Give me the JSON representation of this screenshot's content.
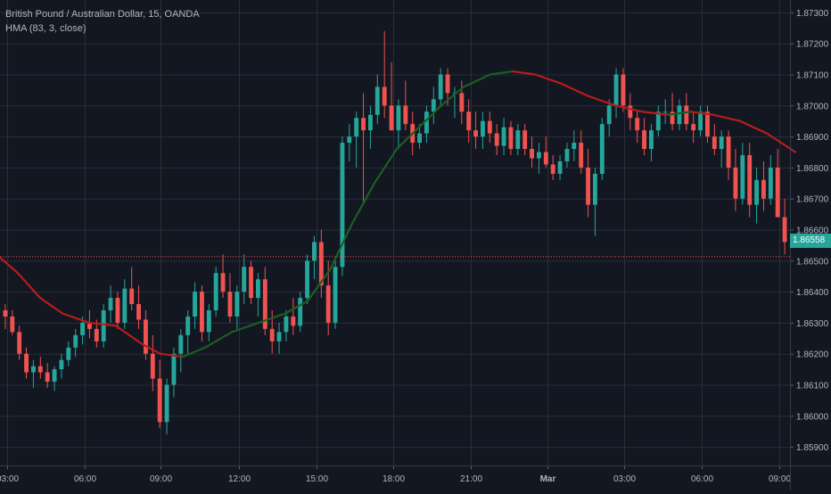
{
  "legend": {
    "symbol": "British Pound / Australian Dollar, 15, OANDA",
    "indicator": "HMA (83, 3, close)"
  },
  "last_price": "1.86558",
  "colors": {
    "background": "#131722",
    "grid": "#2a2e39",
    "up": "#26a69a",
    "down": "#ef5350",
    "hma_down": "#b71c1c",
    "hma_up": "#1b5e20",
    "axis_text": "#b2b5be"
  },
  "chart_data": {
    "type": "candlestick",
    "title": "British Pound / Australian Dollar, 15, OANDA",
    "ylim": [
      1.8584,
      1.8734
    ],
    "y_ticks": [
      "1.87300",
      "1.87200",
      "1.87100",
      "1.87000",
      "1.86900",
      "1.86800",
      "1.86700",
      "1.86600",
      "1.86500",
      "1.86400",
      "1.86300",
      "1.86200",
      "1.86100",
      "1.86000",
      "1.85900"
    ],
    "x_ticks": [
      "03:00",
      "06:00",
      "09:00",
      "12:00",
      "15:00",
      "18:00",
      "21:00",
      "Mar",
      "03:00",
      "06:00",
      "09:00"
    ],
    "reference_price": 1.86513,
    "candles": [
      [
        1.8634,
        1.8636,
        1.8628,
        1.8632
      ],
      [
        1.8632,
        1.8634,
        1.8626,
        1.8627
      ],
      [
        1.8627,
        1.8629,
        1.8618,
        1.862
      ],
      [
        1.862,
        1.8622,
        1.8612,
        1.8614
      ],
      [
        1.8614,
        1.8618,
        1.8609,
        1.8616
      ],
      [
        1.8616,
        1.8619,
        1.8612,
        1.8614
      ],
      [
        1.8614,
        1.8617,
        1.8609,
        1.8611
      ],
      [
        1.8611,
        1.8616,
        1.8608,
        1.8615
      ],
      [
        1.8615,
        1.862,
        1.8612,
        1.8618
      ],
      [
        1.8618,
        1.8624,
        1.8616,
        1.8622
      ],
      [
        1.8622,
        1.8628,
        1.8619,
        1.8626
      ],
      [
        1.8626,
        1.8632,
        1.8623,
        1.863
      ],
      [
        1.863,
        1.8634,
        1.8625,
        1.8628
      ],
      [
        1.8628,
        1.8631,
        1.8622,
        1.8624
      ],
      [
        1.8624,
        1.8636,
        1.8622,
        1.8634
      ],
      [
        1.8634,
        1.8642,
        1.863,
        1.8638
      ],
      [
        1.8638,
        1.864,
        1.8628,
        1.863
      ],
      [
        1.863,
        1.8644,
        1.8628,
        1.8641
      ],
      [
        1.8641,
        1.8648,
        1.8634,
        1.8636
      ],
      [
        1.8636,
        1.8642,
        1.8628,
        1.8631
      ],
      [
        1.8631,
        1.8634,
        1.8618,
        1.862
      ],
      [
        1.862,
        1.8626,
        1.8608,
        1.8612
      ],
      [
        1.8612,
        1.8618,
        1.8596,
        1.8598
      ],
      [
        1.8598,
        1.8612,
        1.8594,
        1.861
      ],
      [
        1.861,
        1.8622,
        1.8606,
        1.862
      ],
      [
        1.862,
        1.8628,
        1.8614,
        1.8626
      ],
      [
        1.8626,
        1.8634,
        1.862,
        1.8632
      ],
      [
        1.8632,
        1.8643,
        1.8628,
        1.864
      ],
      [
        1.864,
        1.8642,
        1.8624,
        1.8627
      ],
      [
        1.8627,
        1.8636,
        1.8624,
        1.8634
      ],
      [
        1.8634,
        1.8648,
        1.8632,
        1.8646
      ],
      [
        1.8646,
        1.8652,
        1.8638,
        1.864
      ],
      [
        1.864,
        1.8646,
        1.863,
        1.8632
      ],
      [
        1.8632,
        1.8642,
        1.8628,
        1.864
      ],
      [
        1.864,
        1.8652,
        1.8636,
        1.8648
      ],
      [
        1.8648,
        1.865,
        1.8636,
        1.8638
      ],
      [
        1.8638,
        1.8646,
        1.8632,
        1.8644
      ],
      [
        1.8644,
        1.8648,
        1.8626,
        1.8628
      ],
      [
        1.8628,
        1.8634,
        1.862,
        1.8624
      ],
      [
        1.8624,
        1.863,
        1.862,
        1.8627
      ],
      [
        1.8627,
        1.8634,
        1.8624,
        1.8632
      ],
      [
        1.8632,
        1.8638,
        1.8626,
        1.8629
      ],
      [
        1.8629,
        1.864,
        1.8627,
        1.8638
      ],
      [
        1.8638,
        1.8652,
        1.8636,
        1.865
      ],
      [
        1.865,
        1.8658,
        1.8644,
        1.8656
      ],
      [
        1.8656,
        1.866,
        1.8638,
        1.8642
      ],
      [
        1.8642,
        1.865,
        1.8626,
        1.863
      ],
      [
        1.863,
        1.865,
        1.8628,
        1.8648
      ],
      [
        1.8648,
        1.869,
        1.8645,
        1.8688
      ],
      [
        1.8688,
        1.8694,
        1.8682,
        1.869
      ],
      [
        1.869,
        1.8698,
        1.868,
        1.8696
      ],
      [
        1.8696,
        1.8704,
        1.8668,
        1.8692
      ],
      [
        1.8692,
        1.87,
        1.8686,
        1.8697
      ],
      [
        1.8697,
        1.871,
        1.8694,
        1.8706
      ],
      [
        1.8706,
        1.8724,
        1.8696,
        1.87
      ],
      [
        1.87,
        1.8714,
        1.8692,
        1.8692
      ],
      [
        1.8692,
        1.8702,
        1.8686,
        1.87
      ],
      [
        1.87,
        1.8708,
        1.8692,
        1.8694
      ],
      [
        1.8694,
        1.8698,
        1.8684,
        1.8688
      ],
      [
        1.8688,
        1.8694,
        1.8686,
        1.8691
      ],
      [
        1.8691,
        1.87,
        1.8688,
        1.8698
      ],
      [
        1.8698,
        1.8706,
        1.8694,
        1.8702
      ],
      [
        1.8702,
        1.8712,
        1.87,
        1.871
      ],
      [
        1.871,
        1.8712,
        1.87,
        1.8704
      ],
      [
        1.8704,
        1.8706,
        1.8696,
        1.8704
      ],
      [
        1.8704,
        1.8708,
        1.8694,
        1.8698
      ],
      [
        1.8698,
        1.8702,
        1.8688,
        1.8692
      ],
      [
        1.8692,
        1.8698,
        1.8686,
        1.869
      ],
      [
        1.869,
        1.8698,
        1.8686,
        1.8695
      ],
      [
        1.8695,
        1.8698,
        1.8688,
        1.8691
      ],
      [
        1.8691,
        1.8694,
        1.8684,
        1.8687
      ],
      [
        1.8687,
        1.8696,
        1.8684,
        1.8693
      ],
      [
        1.8693,
        1.8695,
        1.8684,
        1.8686
      ],
      [
        1.8686,
        1.8694,
        1.8684,
        1.8692
      ],
      [
        1.8692,
        1.8694,
        1.8684,
        1.8686
      ],
      [
        1.8686,
        1.869,
        1.868,
        1.8683
      ],
      [
        1.8683,
        1.8688,
        1.8678,
        1.8685
      ],
      [
        1.8685,
        1.869,
        1.868,
        1.8681
      ],
      [
        1.8681,
        1.8684,
        1.8676,
        1.8678
      ],
      [
        1.8678,
        1.8684,
        1.8676,
        1.8682
      ],
      [
        1.8682,
        1.8688,
        1.868,
        1.8686
      ],
      [
        1.8686,
        1.8692,
        1.8682,
        1.8688
      ],
      [
        1.8688,
        1.8692,
        1.8678,
        1.868
      ],
      [
        1.868,
        1.8686,
        1.8664,
        1.8668
      ],
      [
        1.8668,
        1.868,
        1.8658,
        1.8678
      ],
      [
        1.8678,
        1.8696,
        1.8676,
        1.8694
      ],
      [
        1.8694,
        1.8702,
        1.869,
        1.87
      ],
      [
        1.87,
        1.8712,
        1.8696,
        1.871
      ],
      [
        1.871,
        1.8712,
        1.8698,
        1.87
      ],
      [
        1.87,
        1.8704,
        1.8692,
        1.8696
      ],
      [
        1.8696,
        1.8698,
        1.8688,
        1.8692
      ],
      [
        1.8692,
        1.8696,
        1.8684,
        1.8686
      ],
      [
        1.8686,
        1.8694,
        1.8682,
        1.8692
      ],
      [
        1.8692,
        1.87,
        1.869,
        1.8698
      ],
      [
        1.8698,
        1.8702,
        1.8694,
        1.8698
      ],
      [
        1.8698,
        1.8704,
        1.8692,
        1.8694
      ],
      [
        1.8694,
        1.8702,
        1.8692,
        1.87
      ],
      [
        1.87,
        1.8704,
        1.8692,
        1.8694
      ],
      [
        1.8694,
        1.8698,
        1.8688,
        1.8692
      ],
      [
        1.8692,
        1.87,
        1.869,
        1.8698
      ],
      [
        1.8698,
        1.87,
        1.8688,
        1.869
      ],
      [
        1.869,
        1.8694,
        1.8684,
        1.8686
      ],
      [
        1.8686,
        1.8692,
        1.868,
        1.869
      ],
      [
        1.869,
        1.8692,
        1.8676,
        1.868
      ],
      [
        1.868,
        1.8686,
        1.8666,
        1.867
      ],
      [
        1.867,
        1.8688,
        1.8668,
        1.8684
      ],
      [
        1.8684,
        1.8688,
        1.8664,
        1.8668
      ],
      [
        1.8668,
        1.868,
        1.8662,
        1.8676
      ],
      [
        1.8676,
        1.8682,
        1.8666,
        1.867
      ],
      [
        1.867,
        1.8684,
        1.8668,
        1.868
      ],
      [
        1.868,
        1.8686,
        1.8664,
        1.8664
      ],
      [
        1.8664,
        1.867,
        1.8652,
        1.8656
      ]
    ],
    "hma": [
      [
        0,
        1.8651
      ],
      [
        20,
        1.8646
      ],
      [
        45,
        1.8638
      ],
      [
        70,
        1.8633
      ],
      [
        100,
        1.863
      ],
      [
        130,
        1.8629
      ],
      [
        160,
        1.8623
      ],
      [
        180,
        1.862
      ],
      [
        205,
        1.8619
      ],
      [
        230,
        1.8622
      ],
      [
        260,
        1.8627
      ],
      [
        290,
        1.863
      ],
      [
        320,
        1.8633
      ],
      [
        345,
        1.8637
      ],
      [
        370,
        1.8647
      ],
      [
        395,
        1.8662
      ],
      [
        420,
        1.8675
      ],
      [
        445,
        1.8686
      ],
      [
        470,
        1.8693
      ],
      [
        495,
        1.87
      ],
      [
        520,
        1.8706
      ],
      [
        550,
        1.871
      ],
      [
        575,
        1.8711
      ],
      [
        600,
        1.871
      ],
      [
        630,
        1.8707
      ],
      [
        660,
        1.8703
      ],
      [
        690,
        1.87
      ],
      [
        720,
        1.8698
      ],
      [
        750,
        1.8697
      ],
      [
        775,
        1.8698
      ],
      [
        800,
        1.8697
      ],
      [
        830,
        1.8695
      ],
      [
        860,
        1.8691
      ],
      [
        892,
        1.8685
      ]
    ]
  }
}
